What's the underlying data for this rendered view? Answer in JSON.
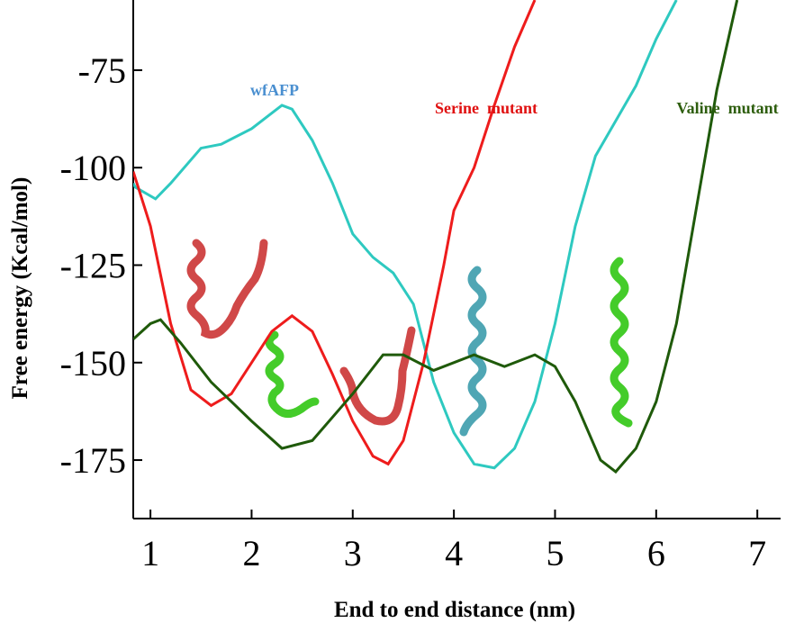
{
  "chart_data": {
    "type": "line",
    "x_label": "End to end distance (nm)",
    "y_label": "Free energy (Kcal/mol)",
    "xlim": [
      0.83,
      7.23
    ],
    "ylim": [
      -190,
      -57
    ],
    "xticks": [
      1,
      2,
      3,
      4,
      5,
      6,
      7
    ],
    "yticks": [
      -75,
      -100,
      -125,
      -150,
      -175
    ],
    "series": [
      {
        "name": "wfAFP",
        "color": "#2ec9c0",
        "x": [
          0.83,
          0.85,
          1.05,
          1.2,
          1.5,
          1.7,
          2.0,
          2.3,
          2.4,
          2.6,
          2.8,
          3.0,
          3.2,
          3.4,
          3.6,
          3.8,
          4.0,
          4.2,
          4.4,
          4.6,
          4.8,
          5.0,
          5.2,
          5.4,
          5.6,
          5.8,
          6.0,
          6.2
        ],
        "values": [
          -104,
          -105,
          -108,
          -104,
          -95,
          -94,
          -90,
          -84,
          -85,
          -93,
          -104,
          -117,
          -123,
          -127,
          -135,
          -155,
          -168,
          -176,
          -177,
          -172,
          -160,
          -140,
          -115,
          -97,
          -88,
          -79,
          -67,
          -57
        ]
      },
      {
        "name": "Serine  mutant",
        "color": "#ee1c1c",
        "x": [
          0.83,
          1.0,
          1.2,
          1.4,
          1.6,
          1.8,
          2.0,
          2.2,
          2.4,
          2.6,
          2.8,
          3.0,
          3.2,
          3.35,
          3.5,
          3.7,
          3.9,
          4.0,
          4.2,
          4.4,
          4.6,
          4.8
        ],
        "values": [
          -101,
          -115,
          -140,
          -157,
          -161,
          -158,
          -150,
          -142,
          -138,
          -142,
          -153,
          -165,
          -174,
          -176,
          -170,
          -150,
          -125,
          -111,
          -100,
          -84,
          -69,
          -57
        ]
      },
      {
        "name": "Valine  mutant",
        "color": "#1f5a0a",
        "x": [
          0.83,
          1.0,
          1.1,
          1.3,
          1.6,
          2.0,
          2.3,
          2.6,
          3.0,
          3.3,
          3.5,
          3.8,
          4.2,
          4.5,
          4.8,
          5.0,
          5.2,
          5.45,
          5.6,
          5.8,
          6.0,
          6.2,
          6.4,
          6.6,
          6.8
        ],
        "values": [
          -144,
          -140,
          -139,
          -145,
          -155,
          -165,
          -172,
          -170,
          -158,
          -148,
          -148,
          -152,
          -148,
          -151,
          -148,
          -151,
          -160,
          -175,
          -178,
          -172,
          -160,
          -140,
          -110,
          -80,
          -57
        ]
      }
    ],
    "label_colors": [
      "#4a8fd0",
      "#e01010",
      "#2e5e0e"
    ]
  }
}
